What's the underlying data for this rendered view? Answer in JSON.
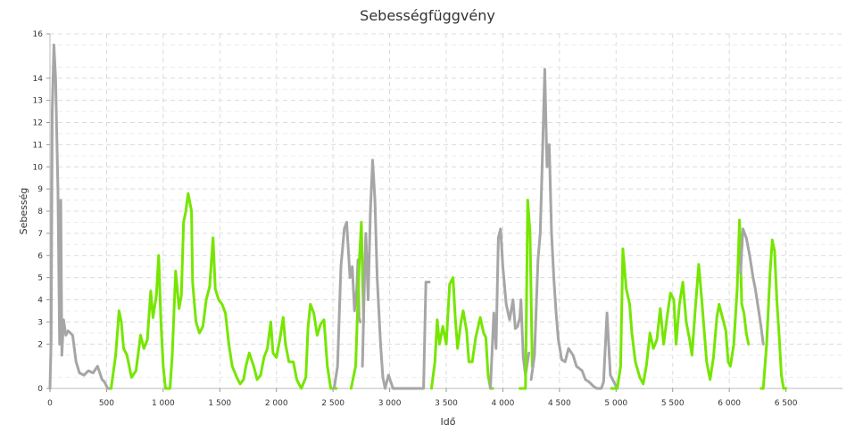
{
  "chart_data": {
    "type": "line",
    "title": "Sebességfüggvény",
    "xlabel": "Idő",
    "ylabel": "Sebesség",
    "xlim": [
      0,
      7000
    ],
    "ylim": [
      0,
      16
    ],
    "grid": true,
    "x_ticks": [
      0,
      500,
      1000,
      1500,
      2000,
      2500,
      3000,
      3500,
      4000,
      4500,
      5000,
      5500,
      6000,
      6500
    ],
    "x_tick_labels": [
      "0",
      "500",
      "1 000",
      "1 500",
      "2 000",
      "2 500",
      "3 000",
      "3 500",
      "4 000",
      "4 500",
      "5 000",
      "5 500",
      "6 000",
      "6 500"
    ],
    "y_ticks": [
      0,
      2,
      3,
      4,
      5,
      6,
      7,
      8,
      9,
      10,
      11,
      12,
      13,
      14,
      16
    ],
    "y_tick_labels": [
      "0",
      "2",
      "3",
      "4",
      "5",
      "6",
      "7",
      "8",
      "9",
      "10",
      "11",
      "12",
      "13",
      "14",
      "16"
    ],
    "colors": {
      "gray": "#a6a6a6",
      "green": "#76e600"
    },
    "series": [
      {
        "color": "gray",
        "points": [
          [
            0,
            0
          ],
          [
            10,
            2.2
          ],
          [
            20,
            12.5
          ],
          [
            35,
            15.5
          ],
          [
            50,
            14
          ],
          [
            70,
            9
          ],
          [
            85,
            2
          ],
          [
            95,
            8.5
          ],
          [
            105,
            1.5
          ],
          [
            120,
            3.1
          ],
          [
            140,
            2.4
          ],
          [
            160,
            2.6
          ],
          [
            200,
            2.4
          ],
          [
            230,
            1.2
          ],
          [
            260,
            0.7
          ],
          [
            300,
            0.6
          ],
          [
            340,
            0.8
          ],
          [
            380,
            0.7
          ],
          [
            420,
            1.0
          ],
          [
            460,
            0.4
          ],
          [
            480,
            0.3
          ],
          [
            510,
            0
          ],
          [
            540,
            0
          ]
        ]
      },
      {
        "color": "green",
        "points": [
          [
            540,
            0
          ],
          [
            580,
            1.5
          ],
          [
            610,
            3.5
          ],
          [
            630,
            3.0
          ],
          [
            650,
            1.8
          ],
          [
            680,
            1.5
          ],
          [
            700,
            1.0
          ],
          [
            720,
            0.5
          ],
          [
            760,
            0.8
          ],
          [
            800,
            2.4
          ],
          [
            830,
            1.8
          ],
          [
            860,
            2.2
          ],
          [
            890,
            4.4
          ],
          [
            910,
            3.2
          ],
          [
            940,
            4.2
          ],
          [
            960,
            6.0
          ],
          [
            980,
            3.0
          ],
          [
            1000,
            1.0
          ],
          [
            1020,
            0
          ],
          [
            1060,
            0
          ],
          [
            1080,
            1.5
          ],
          [
            1110,
            5.3
          ],
          [
            1140,
            3.6
          ],
          [
            1160,
            4.2
          ],
          [
            1180,
            7.5
          ],
          [
            1200,
            8.0
          ],
          [
            1220,
            8.8
          ],
          [
            1250,
            8.0
          ],
          [
            1260,
            4.8
          ],
          [
            1290,
            3.0
          ],
          [
            1320,
            2.5
          ],
          [
            1350,
            2.8
          ],
          [
            1380,
            4.0
          ],
          [
            1410,
            4.6
          ],
          [
            1440,
            6.8
          ],
          [
            1460,
            4.5
          ],
          [
            1490,
            4.0
          ],
          [
            1520,
            3.8
          ],
          [
            1550,
            3.4
          ],
          [
            1580,
            2.0
          ],
          [
            1610,
            1.0
          ],
          [
            1650,
            0.5
          ],
          [
            1680,
            0.2
          ],
          [
            1710,
            0.4
          ],
          [
            1730,
            1.0
          ],
          [
            1760,
            1.6
          ],
          [
            1800,
            1.0
          ],
          [
            1830,
            0.4
          ],
          [
            1860,
            0.6
          ],
          [
            1890,
            1.4
          ],
          [
            1920,
            1.8
          ],
          [
            1950,
            3.0
          ],
          [
            1970,
            1.6
          ],
          [
            2000,
            1.4
          ],
          [
            2030,
            2.2
          ],
          [
            2060,
            3.2
          ],
          [
            2080,
            2.0
          ],
          [
            2110,
            1.2
          ],
          [
            2150,
            1.2
          ],
          [
            2180,
            0.4
          ],
          [
            2220,
            0
          ],
          [
            2260,
            0.5
          ],
          [
            2280,
            2.8
          ],
          [
            2300,
            3.8
          ],
          [
            2330,
            3.4
          ],
          [
            2360,
            2.4
          ],
          [
            2390,
            2.9
          ],
          [
            2420,
            3.1
          ],
          [
            2450,
            1.0
          ],
          [
            2480,
            0
          ],
          [
            2530,
            0
          ]
        ]
      },
      {
        "color": "gray",
        "points": [
          [
            2510,
            0
          ],
          [
            2540,
            1.0
          ],
          [
            2570,
            5.5
          ],
          [
            2600,
            7.2
          ],
          [
            2620,
            7.5
          ],
          [
            2650,
            5.0
          ],
          [
            2670,
            5.5
          ],
          [
            2690,
            3.5
          ],
          [
            2710,
            4.5
          ],
          [
            2720,
            5.8
          ],
          [
            2730,
            3.2
          ],
          [
            2740,
            3.0
          ]
        ]
      },
      {
        "color": "green",
        "points": [
          [
            2660,
            0
          ],
          [
            2700,
            1.0
          ],
          [
            2730,
            5.5
          ],
          [
            2750,
            7.5
          ],
          [
            2770,
            3.0
          ]
        ]
      },
      {
        "color": "gray",
        "points": [
          [
            2760,
            1.0
          ],
          [
            2780,
            5.5
          ],
          [
            2790,
            7.0
          ],
          [
            2810,
            4.0
          ],
          [
            2830,
            8.0
          ],
          [
            2850,
            10.3
          ],
          [
            2870,
            8.5
          ],
          [
            2890,
            5.0
          ],
          [
            2920,
            2.0
          ],
          [
            2940,
            0.5
          ],
          [
            2960,
            0
          ],
          [
            2990,
            0.6
          ],
          [
            3010,
            0.3
          ],
          [
            3030,
            0
          ],
          [
            3300,
            0
          ],
          [
            3320,
            4.8
          ],
          [
            3350,
            4.8
          ]
        ]
      },
      {
        "color": "green",
        "points": [
          [
            3370,
            0
          ],
          [
            3400,
            1.2
          ],
          [
            3420,
            3.1
          ],
          [
            3440,
            2.0
          ],
          [
            3470,
            2.8
          ],
          [
            3500,
            2.0
          ],
          [
            3530,
            4.7
          ],
          [
            3560,
            5.0
          ],
          [
            3580,
            3.2
          ],
          [
            3600,
            1.8
          ],
          [
            3630,
            3.0
          ],
          [
            3650,
            3.5
          ],
          [
            3680,
            2.6
          ],
          [
            3700,
            1.2
          ],
          [
            3730,
            1.2
          ],
          [
            3760,
            2.3
          ],
          [
            3800,
            3.2
          ],
          [
            3830,
            2.5
          ],
          [
            3850,
            2.3
          ],
          [
            3870,
            0.6
          ],
          [
            3890,
            0
          ],
          [
            3910,
            0
          ]
        ]
      },
      {
        "color": "gray",
        "points": [
          [
            3890,
            0
          ],
          [
            3920,
            3.4
          ],
          [
            3940,
            1.8
          ],
          [
            3960,
            6.8
          ],
          [
            3980,
            7.2
          ],
          [
            4000,
            5.5
          ],
          [
            4030,
            3.8
          ],
          [
            4060,
            3.1
          ],
          [
            4090,
            4.0
          ],
          [
            4110,
            2.7
          ],
          [
            4130,
            2.8
          ],
          [
            4150,
            3.2
          ],
          [
            4160,
            4.0
          ],
          [
            4180,
            1.4
          ],
          [
            4200,
            0.6
          ],
          [
            4230,
            1.6
          ]
        ]
      },
      {
        "color": "green",
        "points": [
          [
            4150,
            0
          ],
          [
            4200,
            0
          ],
          [
            4220,
            8.5
          ],
          [
            4240,
            7.0
          ],
          [
            4260,
            1.0
          ]
        ]
      },
      {
        "color": "gray",
        "points": [
          [
            4250,
            0.4
          ],
          [
            4280,
            1.5
          ],
          [
            4310,
            5.8
          ],
          [
            4330,
            7.0
          ],
          [
            4350,
            10.5
          ],
          [
            4370,
            14.4
          ],
          [
            4390,
            10.0
          ],
          [
            4410,
            11.0
          ],
          [
            4430,
            7.0
          ],
          [
            4450,
            5.0
          ],
          [
            4470,
            3.4
          ],
          [
            4490,
            2.2
          ],
          [
            4520,
            1.3
          ],
          [
            4550,
            1.2
          ],
          [
            4580,
            1.8
          ],
          [
            4620,
            1.5
          ],
          [
            4650,
            1.0
          ],
          [
            4700,
            0.8
          ],
          [
            4730,
            0.4
          ],
          [
            4760,
            0.3
          ],
          [
            4800,
            0.1
          ],
          [
            4830,
            0
          ],
          [
            4870,
            0
          ],
          [
            4890,
            0.3
          ],
          [
            4920,
            3.4
          ],
          [
            4950,
            0.6
          ],
          [
            5010,
            0
          ]
        ]
      },
      {
        "color": "green",
        "points": [
          [
            4960,
            0
          ],
          [
            5010,
            0
          ],
          [
            5040,
            1.0
          ],
          [
            5060,
            6.3
          ],
          [
            5090,
            4.5
          ],
          [
            5120,
            3.8
          ],
          [
            5140,
            2.5
          ],
          [
            5170,
            1.2
          ],
          [
            5210,
            0.5
          ],
          [
            5240,
            0.2
          ],
          [
            5270,
            1.1
          ],
          [
            5300,
            2.5
          ],
          [
            5330,
            1.8
          ],
          [
            5360,
            2.2
          ],
          [
            5390,
            3.6
          ],
          [
            5420,
            2.0
          ],
          [
            5450,
            3.2
          ],
          [
            5480,
            4.3
          ],
          [
            5510,
            4.0
          ],
          [
            5530,
            2.0
          ],
          [
            5560,
            3.8
          ],
          [
            5590,
            4.8
          ],
          [
            5620,
            3.0
          ],
          [
            5650,
            2.2
          ],
          [
            5670,
            1.5
          ],
          [
            5700,
            3.6
          ],
          [
            5730,
            5.6
          ],
          [
            5760,
            3.8
          ],
          [
            5800,
            1.2
          ],
          [
            5830,
            0.4
          ],
          [
            5860,
            1.4
          ],
          [
            5890,
            3.2
          ],
          [
            5910,
            3.8
          ],
          [
            5940,
            3.2
          ],
          [
            5970,
            2.6
          ],
          [
            5990,
            1.2
          ],
          [
            6010,
            1.0
          ],
          [
            6040,
            2.0
          ],
          [
            6070,
            4.5
          ],
          [
            6090,
            7.6
          ],
          [
            6110,
            3.8
          ],
          [
            6130,
            3.4
          ],
          [
            6150,
            2.5
          ],
          [
            6170,
            2.0
          ]
        ]
      },
      {
        "color": "gray",
        "points": [
          [
            6100,
            5.2
          ],
          [
            6120,
            7.2
          ],
          [
            6150,
            6.8
          ],
          [
            6180,
            6.0
          ],
          [
            6210,
            5.0
          ],
          [
            6230,
            4.5
          ],
          [
            6260,
            3.5
          ],
          [
            6280,
            2.8
          ],
          [
            6300,
            2.0
          ]
        ]
      },
      {
        "color": "green",
        "points": [
          [
            6280,
            0
          ],
          [
            6300,
            0
          ],
          [
            6330,
            2.0
          ],
          [
            6360,
            5.2
          ],
          [
            6380,
            6.7
          ],
          [
            6400,
            6.2
          ],
          [
            6420,
            4.0
          ],
          [
            6440,
            2.4
          ],
          [
            6460,
            0.6
          ],
          [
            6480,
            0
          ],
          [
            6500,
            0
          ]
        ]
      }
    ]
  }
}
